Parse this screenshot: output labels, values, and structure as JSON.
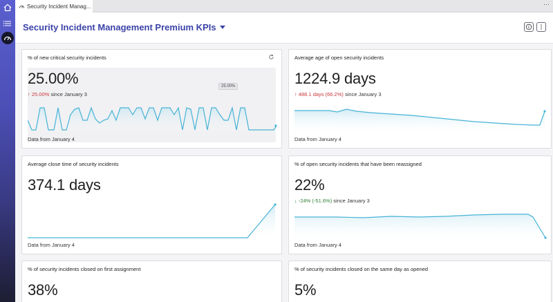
{
  "tab": {
    "label": "Security Incident Manag..."
  },
  "header": {
    "title": "Security Incident Management Premium KPIs"
  },
  "icons": {
    "home": "home-icon",
    "list": "list-icon",
    "gauge": "gauge-icon",
    "info": "info-icon",
    "more": "more-vertical-icon",
    "refresh": "refresh-icon"
  },
  "colors": {
    "accent": "#3b43a8",
    "line": "#46b3d6",
    "up": "#c8363b",
    "down": "#2e7d32"
  },
  "cards": [
    {
      "title": "% of new critical security incidents",
      "value": "25.00%",
      "trend_arrow": "↑",
      "trend_delta": "25.00%",
      "trend_text": "since January 3",
      "tooltip": "25.00%",
      "footer": "Data from January 4"
    },
    {
      "title": "Average age of open security incidents",
      "value": "1224.9 days",
      "trend_arrow": "↑",
      "trend_delta": "488.1 days (66.2%)",
      "trend_text": "since January 3",
      "footer": "Data from January 4"
    },
    {
      "title": "Average close time of security incidents",
      "value": "374.1 days",
      "footer": "Data from January 4"
    },
    {
      "title": "% of open security incidents that have been reassigned",
      "value": "22%",
      "trend_arrow": "↓",
      "trend_delta": "-24% (-51.6%)",
      "trend_text": "since January 3",
      "footer": "Data from January 4"
    },
    {
      "title": "% of security incidents closed on first assignment",
      "value": "38%"
    },
    {
      "title": "% of security incidents closed on the same day as opened",
      "value": "5%"
    }
  ]
}
